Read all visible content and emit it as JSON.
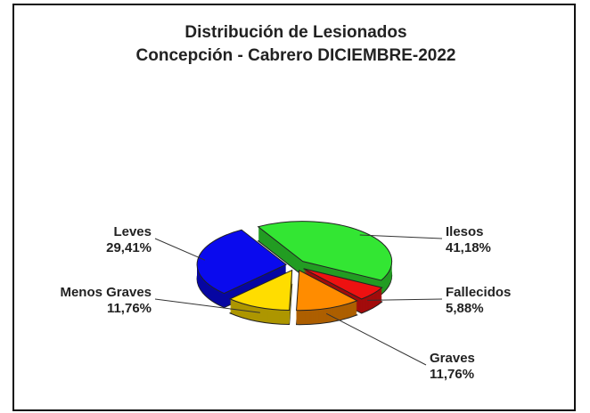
{
  "chart_data": {
    "type": "pie3d",
    "title": "Distribución de Lesionados",
    "subtitle": "Concepción - Cabrero DICIEMBRE-2022",
    "categories": [
      "Ilesos",
      "Fallecidos",
      "Graves",
      "Menos Graves",
      "Leves"
    ],
    "values": [
      41.18,
      5.88,
      11.76,
      11.76,
      29.41
    ],
    "value_labels": [
      "41,18%",
      "5,88%",
      "11,76%",
      "11,76%",
      "29,41%"
    ],
    "colors": [
      "#33e633",
      "#ee1111",
      "#ff8c00",
      "#ffdd00",
      "#0a0aee"
    ]
  }
}
